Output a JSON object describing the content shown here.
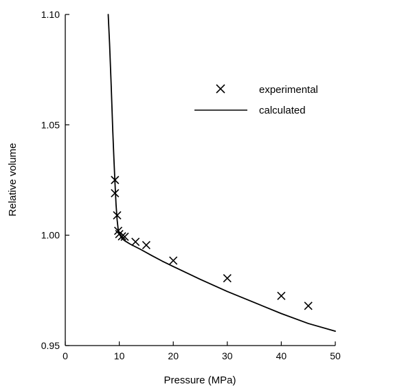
{
  "chart_data": {
    "type": "scatter",
    "title": "",
    "xlabel": "Pressure (MPa)",
    "ylabel": "Relative volume",
    "xlim": [
      0,
      50
    ],
    "ylim": [
      0.95,
      1.1
    ],
    "x_ticks": [
      "0",
      "10",
      "20",
      "30",
      "40",
      "50"
    ],
    "y_ticks": [
      "0.95",
      "1.00",
      "1.05",
      "1.10"
    ],
    "grid": false,
    "legend_position": "top-right",
    "series": [
      {
        "name": "experimental",
        "kind": "markers",
        "marker": "x",
        "points": [
          {
            "x": 9.2,
            "y": 1.025
          },
          {
            "x": 9.2,
            "y": 1.019
          },
          {
            "x": 9.6,
            "y": 1.009
          },
          {
            "x": 9.8,
            "y": 1.002
          },
          {
            "x": 10.0,
            "y": 1.0005
          },
          {
            "x": 10.5,
            "y": 0.9995
          },
          {
            "x": 11.0,
            "y": 0.9993
          },
          {
            "x": 13.0,
            "y": 0.997
          },
          {
            "x": 15.0,
            "y": 0.9955
          },
          {
            "x": 20.0,
            "y": 0.9885
          },
          {
            "x": 30.0,
            "y": 0.9805
          },
          {
            "x": 40.0,
            "y": 0.9725
          },
          {
            "x": 45.0,
            "y": 0.968
          }
        ]
      },
      {
        "name": "calculated",
        "kind": "line",
        "points": [
          {
            "x": 7.95,
            "y": 1.1
          },
          {
            "x": 8.2,
            "y": 1.087
          },
          {
            "x": 8.5,
            "y": 1.068
          },
          {
            "x": 8.8,
            "y": 1.047
          },
          {
            "x": 9.0,
            "y": 1.035
          },
          {
            "x": 9.2,
            "y": 1.024
          },
          {
            "x": 9.4,
            "y": 1.014
          },
          {
            "x": 9.6,
            "y": 1.007
          },
          {
            "x": 9.8,
            "y": 1.0025
          },
          {
            "x": 10.0,
            "y": 1.0005
          },
          {
            "x": 10.5,
            "y": 0.9985
          },
          {
            "x": 11.0,
            "y": 0.9975
          },
          {
            "x": 12.0,
            "y": 0.996
          },
          {
            "x": 14.0,
            "y": 0.9935
          },
          {
            "x": 16.0,
            "y": 0.9908
          },
          {
            "x": 18.0,
            "y": 0.9882
          },
          {
            "x": 20.0,
            "y": 0.9858
          },
          {
            "x": 25.0,
            "y": 0.98
          },
          {
            "x": 30.0,
            "y": 0.9745
          },
          {
            "x": 35.0,
            "y": 0.9695
          },
          {
            "x": 40.0,
            "y": 0.9645
          },
          {
            "x": 45.0,
            "y": 0.96
          },
          {
            "x": 50.0,
            "y": 0.9565
          }
        ]
      }
    ]
  }
}
